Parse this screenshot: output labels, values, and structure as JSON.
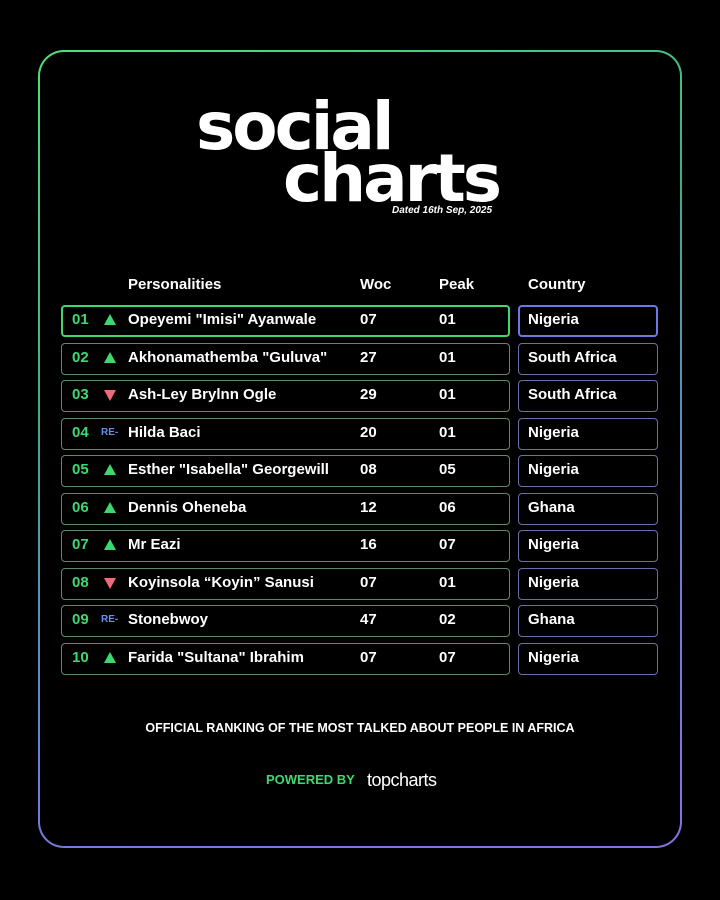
{
  "header": {
    "title_line1": "social",
    "title_line2": "charts",
    "dated": "Dated 16th Sep, 2025"
  },
  "columns": {
    "personalities": "Personalities",
    "woc": "Woc",
    "peak": "Peak",
    "country": "Country"
  },
  "colors": {
    "up": "#3fd870",
    "down": "#f06a7a",
    "re": "#6a8ee8",
    "accent_green": "#3fd870",
    "accent_purple": "#6a78e8"
  },
  "rows": [
    {
      "rank": "01",
      "movement": "up",
      "name": "Opeyemi \"Imisi\" Ayanwale",
      "woc": "07",
      "peak": "01",
      "country": "Nigeria"
    },
    {
      "rank": "02",
      "movement": "up",
      "name": "Akhonamathemba \"Guluva\"",
      "woc": "27",
      "peak": "01",
      "country": "South Africa"
    },
    {
      "rank": "03",
      "movement": "down",
      "name": "Ash-Ley Brylnn Ogle",
      "woc": "29",
      "peak": "01",
      "country": "South Africa"
    },
    {
      "rank": "04",
      "movement": "re",
      "re_label": "RE-",
      "name": "Hilda Baci",
      "woc": "20",
      "peak": "01",
      "country": "Nigeria"
    },
    {
      "rank": "05",
      "movement": "up",
      "name": "Esther \"Isabella\" Georgewill",
      "woc": "08",
      "peak": "05",
      "country": "Nigeria"
    },
    {
      "rank": "06",
      "movement": "up",
      "name": "Dennis Oheneba",
      "woc": "12",
      "peak": "06",
      "country": "Ghana"
    },
    {
      "rank": "07",
      "movement": "up",
      "name": "Mr Eazi",
      "woc": "16",
      "peak": "07",
      "country": "Nigeria"
    },
    {
      "rank": "08",
      "movement": "down",
      "name": "Koyinsola “Koyin” Sanusi",
      "woc": "07",
      "peak": "01",
      "country": "Nigeria"
    },
    {
      "rank": "09",
      "movement": "re",
      "re_label": "RE-",
      "name": "Stonebwoy",
      "woc": "47",
      "peak": "02",
      "country": "Ghana"
    },
    {
      "rank": "10",
      "movement": "up",
      "name": "Farida \"Sultana\" Ibrahim",
      "woc": "07",
      "peak": "07",
      "country": "Nigeria"
    }
  ],
  "footer": {
    "tagline": "OFFICIAL RANKING OF THE MOST TALKED ABOUT PEOPLE IN AFRICA",
    "powered_by": "POWERED BY",
    "brand": "topcharts"
  }
}
